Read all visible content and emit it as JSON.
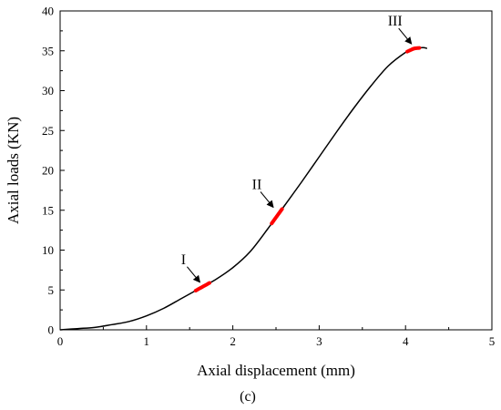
{
  "chart_data": {
    "type": "line",
    "xlabel": "Axial displacement (mm)",
    "ylabel": "Axial loads (KN)",
    "panel_label": "(c)",
    "xlim": [
      0,
      5
    ],
    "ylim": [
      0,
      40
    ],
    "xticks": [
      0,
      1,
      2,
      3,
      4,
      5
    ],
    "yticks": [
      0,
      5,
      10,
      15,
      20,
      25,
      30,
      35,
      40
    ],
    "grid": false,
    "series": [
      {
        "color": "#000000",
        "x": [
          0,
          0.2,
          0.4,
          0.6,
          0.8,
          1.0,
          1.2,
          1.4,
          1.6,
          1.8,
          2.0,
          2.2,
          2.4,
          2.6,
          2.8,
          3.0,
          3.2,
          3.4,
          3.6,
          3.8,
          4.0,
          4.1,
          4.2,
          4.25
        ],
        "y": [
          0,
          0.15,
          0.3,
          0.65,
          1.05,
          1.75,
          2.7,
          3.9,
          5.1,
          6.3,
          7.8,
          9.8,
          12.6,
          15.6,
          18.6,
          21.7,
          24.8,
          27.8,
          30.6,
          33.1,
          34.8,
          35.3,
          35.4,
          35.3
        ]
      }
    ],
    "annotations": [
      {
        "label": "I",
        "x": 1.65,
        "y": 5.4,
        "highlight_x": [
          1.57,
          1.73
        ],
        "color": "#ff0000"
      },
      {
        "label": "II",
        "x": 2.5,
        "y": 14.8,
        "highlight_x": [
          2.45,
          2.57
        ],
        "color": "#ff0000"
      },
      {
        "label": "III",
        "x": 4.1,
        "y": 35.3,
        "highlight_x": [
          4.02,
          4.16
        ],
        "color": "#ff0000"
      }
    ]
  }
}
